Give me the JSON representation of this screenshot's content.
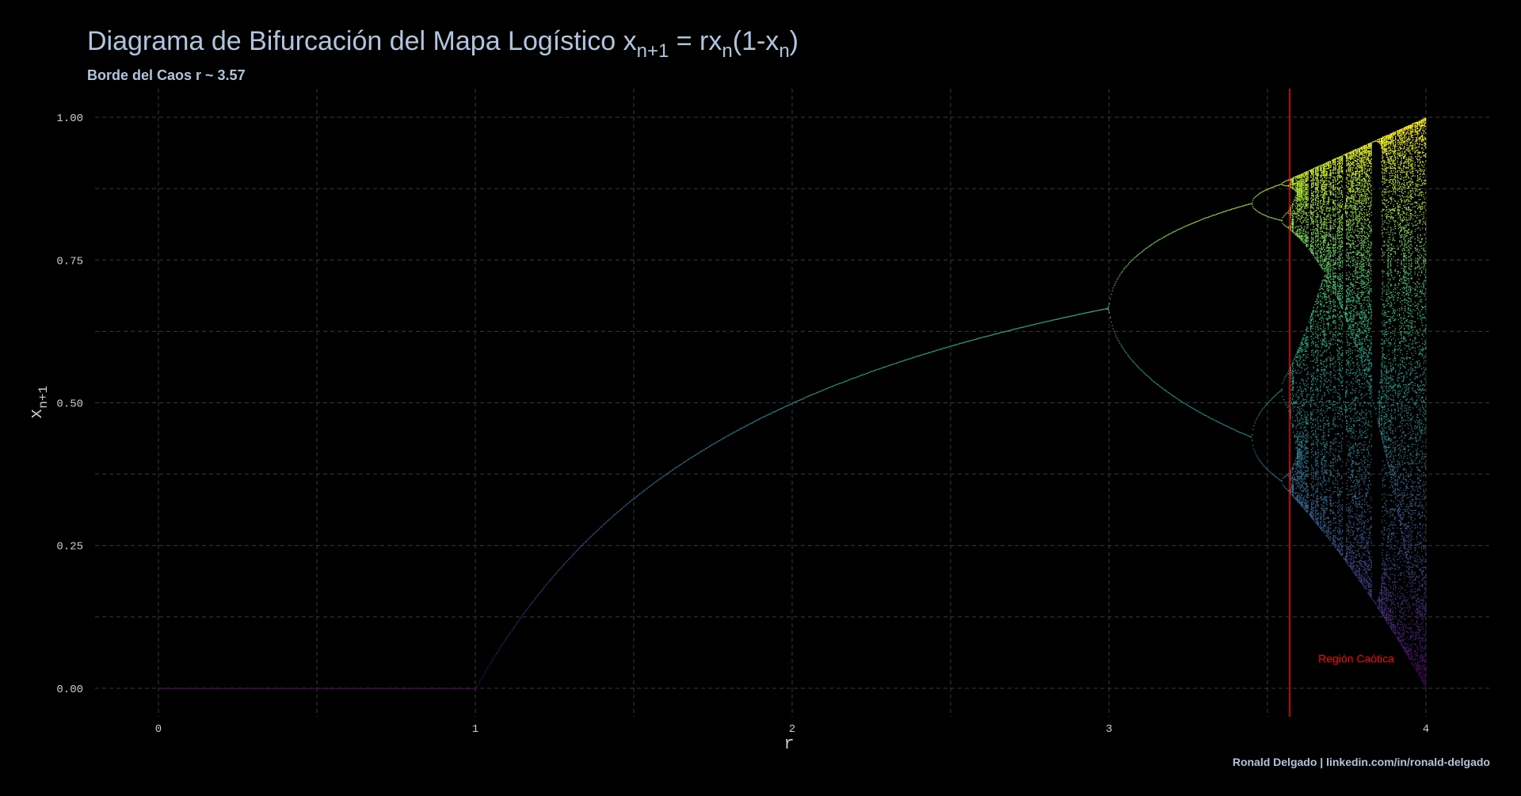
{
  "chart_data": {
    "type": "scatter",
    "title": {
      "prefix": "Diagrama de Bifurcación del Mapa Logístico ",
      "formula": [
        {
          "t": "x",
          "sub": false
        },
        {
          "t": "n+1",
          "sub": true
        },
        {
          "t": " = rx",
          "sub": false
        },
        {
          "t": "n",
          "sub": true
        },
        {
          "t": "(1-x",
          "sub": false
        },
        {
          "t": "n",
          "sub": true
        },
        {
          "t": ")",
          "sub": false
        }
      ]
    },
    "subtitle": "Borde del Caos r ~ 3.57",
    "xlabel": "r",
    "ylabel": {
      "base": "x",
      "sub": "n+1"
    },
    "xlim": [
      -0.2,
      4.2
    ],
    "ylim": [
      -0.05,
      1.05
    ],
    "x_ticks": [
      0,
      1,
      2,
      3,
      4
    ],
    "x_tick_labels": [
      "0",
      "1",
      "2",
      "3",
      "4"
    ],
    "y_ticks": [
      0.0,
      0.25,
      0.5,
      0.75,
      1.0
    ],
    "y_tick_labels": [
      "0.00",
      "0.25",
      "0.50",
      "0.75",
      "1.00"
    ],
    "x_minor_gridlines": [
      0.5,
      1.5,
      2.5,
      3.5
    ],
    "y_minor_gridlines": [
      0.125,
      0.375,
      0.625,
      0.875
    ],
    "grid": true,
    "legend": "none",
    "series": [
      {
        "map": "logistic x[n+1] = r*x[n]*(1-x[n])",
        "r_range": [
          0,
          4
        ],
        "color_by": "x",
        "colormap": "viridis"
      }
    ],
    "vline": {
      "x": 3.57,
      "color": "#ff0000"
    },
    "annotations": [
      {
        "text": "Región Caótica",
        "x": 3.78,
        "y": 0.045,
        "color": "#ff0000"
      }
    ],
    "caption": "Ronald Delgado | linkedin.com/in/ronald-delgado"
  }
}
